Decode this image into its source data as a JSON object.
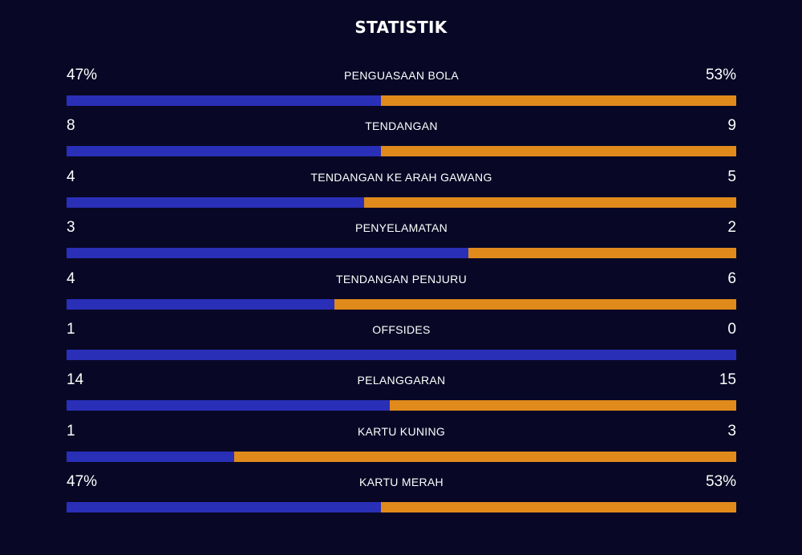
{
  "title": "STATISTIK",
  "colors": {
    "background": "#080826",
    "home": "#2a2fb8",
    "away": "#e08a1c"
  },
  "stats": [
    {
      "label": "PENGUASAAN BOLA",
      "left": "47%",
      "right": "53%",
      "left_share": 0.47
    },
    {
      "label": "TENDANGAN",
      "left": "8",
      "right": "9",
      "left_share": 0.47
    },
    {
      "label": "TENDANGAN KE ARAH GAWANG",
      "left": "4",
      "right": "5",
      "left_share": 0.444
    },
    {
      "label": "PENYELAMATAN",
      "left": "3",
      "right": "2",
      "left_share": 0.6
    },
    {
      "label": "TENDANGAN PENJURU",
      "left": "4",
      "right": "6",
      "left_share": 0.4
    },
    {
      "label": "OFFSIDES",
      "left": "1",
      "right": "0",
      "left_share": 1.0
    },
    {
      "label": "PELANGGARAN",
      "left": "14",
      "right": "15",
      "left_share": 0.483
    },
    {
      "label": "KARTU KUNING",
      "left": "1",
      "right": "3",
      "left_share": 0.25
    },
    {
      "label": "KARTU MERAH",
      "left": "47%",
      "right": "53%",
      "left_share": 0.47
    }
  ]
}
